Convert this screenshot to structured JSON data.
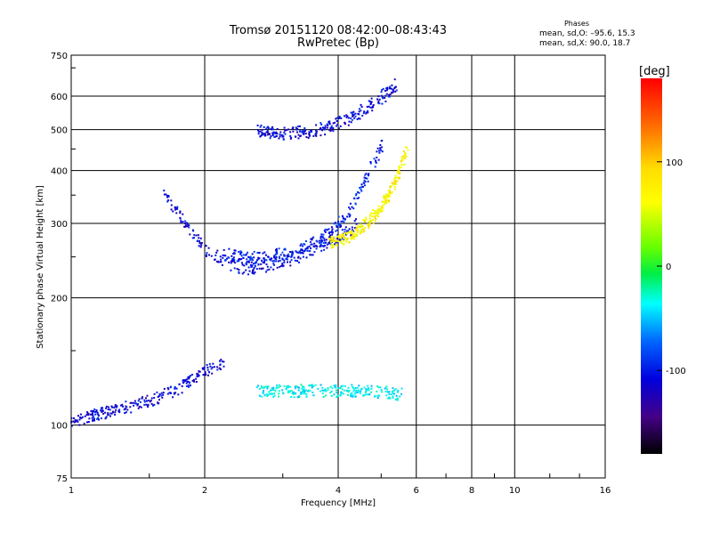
{
  "header": {
    "title_line1": "Tromsø 20151120 08:42:00–08:43:43",
    "title_line2": "RwPretec (Bp)",
    "phases_title": "Phases",
    "phases_line1": "mean, sd,O: –95.6, 15.3",
    "phases_line2": "mean, sd,X:  90.0, 18.7"
  },
  "colorbar": {
    "unit_label": "[deg]",
    "tick_labels": [
      "100",
      "0",
      "-100"
    ],
    "tick_values": [
      100,
      0,
      -100
    ],
    "range": [
      -180,
      180
    ]
  },
  "chart_data": {
    "type": "scatter",
    "title": "Tromsø 20151120 08:42:00–08:43:43",
    "subtitle": "RwPretec (Bp)",
    "xlabel": "Frequency [MHz]",
    "ylabel": "Stationary phase Virtual Height [km]",
    "x_scale": "log",
    "y_scale": "log",
    "xlim": [
      1,
      16
    ],
    "ylim": [
      75,
      750
    ],
    "x_ticks": [
      1,
      2,
      4,
      6,
      8,
      10,
      16
    ],
    "x_tick_labels": [
      "1",
      "2",
      "4",
      "6",
      "8",
      "10",
      "16"
    ],
    "y_ticks": [
      75,
      100,
      200,
      300,
      400,
      500,
      600,
      750
    ],
    "y_tick_labels": [
      "75",
      "100",
      "200",
      "300",
      "400",
      "500",
      "600",
      "750"
    ],
    "grid": true,
    "color_encoding": "phase [deg]",
    "traces": [
      {
        "freq_MHz": [
          1.0,
          1.2,
          1.4,
          1.6,
          1.8,
          2.0,
          2.2
        ],
        "height_km": [
          102,
          108,
          112,
          118,
          125,
          135,
          140
        ],
        "phase_deg": -110
      },
      {
        "freq_MHz": [
          1.6,
          1.8,
          2.0,
          2.4,
          2.8,
          3.2,
          3.6,
          4.0,
          4.4
        ],
        "height_km": [
          360,
          300,
          260,
          235,
          240,
          250,
          265,
          280,
          300
        ],
        "phase_deg": -110
      },
      {
        "freq_MHz": [
          2.2,
          2.6,
          3.0,
          3.4,
          3.8,
          4.2,
          4.6,
          5.0
        ],
        "height_km": [
          255,
          250,
          255,
          265,
          285,
          320,
          380,
          460
        ],
        "phase_deg": -100
      },
      {
        "freq_MHz": [
          3.8,
          4.2,
          4.6,
          5.0,
          5.4,
          5.7
        ],
        "height_km": [
          270,
          280,
          300,
          330,
          380,
          460
        ],
        "phase_deg": 100
      },
      {
        "freq_MHz": [
          2.6,
          3.0,
          3.6,
          4.2,
          4.8,
          5.4
        ],
        "height_km": [
          500,
          490,
          500,
          530,
          580,
          640
        ],
        "phase_deg": -110
      },
      {
        "freq_MHz": [
          2.6,
          3.0,
          3.5,
          4.0,
          4.5,
          5.0,
          5.5
        ],
        "height_km": [
          121,
          121,
          121,
          121,
          121,
          120,
          119
        ],
        "phase_deg": -40
      }
    ]
  }
}
